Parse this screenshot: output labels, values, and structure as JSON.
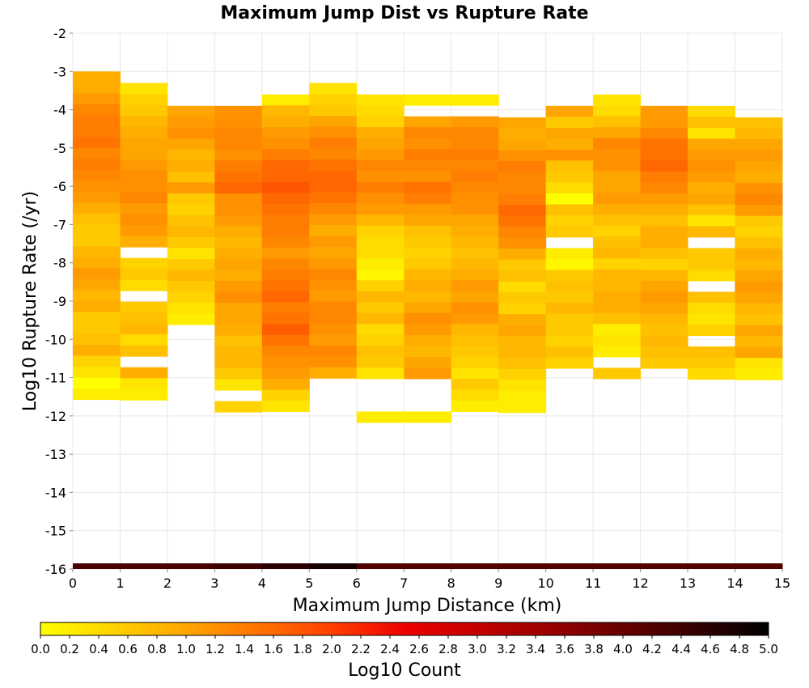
{
  "chart_data": {
    "type": "heatmap",
    "title": "Maximum Jump Dist vs Rupture Rate",
    "xlabel": "Maximum Jump Distance (km)",
    "ylabel": "Log10 Rupture Rate (/yr)",
    "xlim": [
      0,
      15
    ],
    "ylim": [
      -16,
      -2
    ],
    "x_ticks": [
      "0",
      "1",
      "2",
      "3",
      "4",
      "5",
      "6",
      "7",
      "8",
      "9",
      "10",
      "11",
      "12",
      "13",
      "14",
      "15"
    ],
    "y_ticks": [
      "-2",
      "-3",
      "-4",
      "-5",
      "-6",
      "-7",
      "-8",
      "-9",
      "-10",
      "-11",
      "-12",
      "-13",
      "-14",
      "-15",
      "-16"
    ],
    "grid": true,
    "x_bin_width": 1,
    "y_bin_height": 0.2857,
    "colorbar": {
      "label": "Log10 Count",
      "range": [
        0,
        5
      ],
      "ticks": [
        "0.0",
        "0.2",
        "0.4",
        "0.6",
        "0.8",
        "1.0",
        "1.2",
        "1.4",
        "1.6",
        "1.8",
        "2.0",
        "2.2",
        "2.4",
        "2.6",
        "2.8",
        "3.0",
        "3.2",
        "3.4",
        "3.6",
        "3.8",
        "4.0",
        "4.2",
        "4.4",
        "4.6",
        "4.8",
        "5.0"
      ],
      "colormap": [
        {
          "v": 0.0,
          "color": "#ffff00"
        },
        {
          "v": 1.0,
          "color": "#ffa500"
        },
        {
          "v": 2.0,
          "color": "#ff4000"
        },
        {
          "v": 2.5,
          "color": "#ee0000"
        },
        {
          "v": 3.5,
          "color": "#990000"
        },
        {
          "v": 5.0,
          "color": "#000000"
        }
      ]
    },
    "bottom_band_y": -16,
    "bottom_band_values": [
      4.3,
      4.3,
      4.3,
      4.4,
      4.6,
      4.8,
      4.2,
      4.2,
      4.2,
      4.2,
      4.2,
      4.2,
      4.2,
      4.2,
      4.2
    ],
    "columns": [
      {
        "x": 0,
        "y_top": -3.0,
        "values": [
          0.9,
          0.9,
          1.1,
          1.3,
          1.4,
          1.4,
          1.5,
          1.3,
          1.4,
          1.3,
          1.2,
          1.1,
          0.9,
          0.7,
          0.6,
          0.6,
          0.8,
          0.9,
          1.1,
          1.0,
          0.8,
          0.9,
          0.6,
          0.6,
          0.7,
          0.9,
          0.5,
          0.3,
          0.0,
          0.2
        ]
      },
      {
        "x": 1,
        "y_top": -3.3,
        "values": [
          0.3,
          0.5,
          0.6,
          0.8,
          0.9,
          1.0,
          1.0,
          1.1,
          1.2,
          1.2,
          1.3,
          1.1,
          1.2,
          1.1,
          0.9,
          null,
          0.5,
          0.6,
          0.4,
          null,
          0.6,
          0.7,
          0.8,
          0.4,
          0.7,
          null,
          0.9,
          0.3,
          0.2
        ]
      },
      {
        "x": 2,
        "y_top": -3.9,
        "values": [
          1.0,
          1.1,
          1.2,
          1.0,
          0.8,
          0.9,
          0.7,
          1.1,
          0.6,
          0.5,
          0.7,
          0.8,
          0.6,
          0.3,
          0.6,
          0.8,
          0.6,
          0.5,
          0.3,
          0.2
        ]
      },
      {
        "x": 3,
        "y_top": -3.9,
        "values": [
          1.2,
          1.2,
          1.3,
          1.3,
          1.2,
          1.4,
          1.5,
          1.6,
          1.2,
          1.2,
          1.1,
          0.9,
          0.8,
          0.9,
          1.0,
          0.9,
          1.1,
          1.2,
          1.0,
          1.0,
          0.9,
          0.7,
          0.8,
          0.8,
          0.6,
          0.3,
          null,
          0.5
        ]
      },
      {
        "x": 4,
        "y_top": -3.6,
        "values": [
          0.2,
          0.8,
          0.9,
          1.1,
          1.2,
          1.4,
          1.6,
          1.6,
          1.8,
          1.6,
          1.5,
          1.4,
          1.4,
          1.3,
          1.1,
          1.3,
          1.4,
          1.5,
          1.6,
          1.4,
          1.5,
          1.7,
          1.5,
          1.3,
          1.2,
          1.1,
          0.9,
          0.5,
          0.3
        ]
      },
      {
        "x": 5,
        "y_top": -3.3,
        "values": [
          0.3,
          0.5,
          0.6,
          1.0,
          1.2,
          1.4,
          1.3,
          1.5,
          1.6,
          1.6,
          1.5,
          1.3,
          1.1,
          0.9,
          1.1,
          1.0,
          1.1,
          1.3,
          1.2,
          1.1,
          1.3,
          1.3,
          1.2,
          1.1,
          1.3,
          1.2,
          0.9
        ]
      },
      {
        "x": 6,
        "y_top": -3.6,
        "values": [
          0.3,
          0.4,
          0.5,
          0.9,
          1.0,
          1.1,
          1.3,
          1.2,
          1.4,
          1.2,
          1.1,
          0.8,
          0.5,
          0.4,
          0.4,
          0.2,
          0.1,
          0.5,
          0.8,
          0.6,
          0.8,
          0.4,
          0.5,
          0.7,
          0.6,
          0.3,
          null,
          null,
          null,
          0.2
        ]
      },
      {
        "x": 7,
        "y_top": -3.6,
        "values": [
          0.2,
          null,
          1.0,
          1.3,
          1.2,
          1.4,
          1.3,
          1.2,
          1.5,
          1.4,
          1.1,
          1.0,
          0.7,
          0.6,
          0.5,
          0.6,
          0.8,
          0.9,
          0.8,
          1.0,
          1.2,
          1.1,
          0.9,
          0.8,
          1.0,
          1.1,
          null,
          null,
          null,
          0.2
        ]
      },
      {
        "x": 8,
        "y_top": -3.6,
        "values": [
          0.2,
          null,
          1.1,
          1.3,
          1.3,
          1.4,
          1.3,
          1.4,
          1.3,
          1.2,
          1.2,
          1.0,
          0.9,
          0.8,
          0.7,
          0.8,
          0.9,
          1.1,
          1.0,
          1.2,
          1.1,
          0.8,
          0.7,
          0.6,
          0.5,
          0.3,
          0.6,
          0.4,
          0.2
        ]
      },
      {
        "x": 9,
        "y_top": -4.2,
        "values": [
          1.0,
          0.9,
          1.0,
          1.2,
          1.4,
          1.3,
          1.3,
          1.4,
          1.6,
          1.5,
          1.3,
          1.2,
          0.9,
          0.6,
          0.7,
          0.4,
          0.6,
          0.5,
          0.9,
          1.0,
          0.8,
          0.8,
          0.7,
          0.5,
          0.3,
          0.2,
          0.2
        ]
      },
      {
        "x": 10,
        "y_top": -3.9,
        "values": [
          1.0,
          0.6,
          1.0,
          0.9,
          1.2,
          0.7,
          0.6,
          0.4,
          0.0,
          0.7,
          0.5,
          0.6,
          null,
          0.2,
          0.1,
          0.6,
          0.7,
          0.6,
          0.8,
          0.6,
          0.6,
          0.5,
          0.7,
          0.5
        ]
      },
      {
        "x": 11,
        "y_top": -3.6,
        "values": [
          0.3,
          0.4,
          0.7,
          1.0,
          1.3,
          1.2,
          1.2,
          1.0,
          1.0,
          1.1,
          0.9,
          0.7,
          0.5,
          0.7,
          0.8,
          0.5,
          0.8,
          0.8,
          0.9,
          0.9,
          0.7,
          0.2,
          0.3,
          0.2,
          null,
          0.6
        ]
      },
      {
        "x": 12,
        "y_top": -3.9,
        "values": [
          1.1,
          1.1,
          1.3,
          1.5,
          1.5,
          1.6,
          1.4,
          1.3,
          1.1,
          0.9,
          0.7,
          0.9,
          0.9,
          0.7,
          0.5,
          0.8,
          1.0,
          1.1,
          1.0,
          0.8,
          0.7,
          0.8,
          0.7,
          0.6
        ]
      },
      {
        "x": 13,
        "y_top": -3.9,
        "values": [
          0.4,
          0.7,
          0.3,
          1.0,
          1.1,
          1.2,
          1.1,
          0.9,
          1.0,
          0.7,
          0.3,
          0.8,
          null,
          0.6,
          0.6,
          0.4,
          null,
          0.7,
          0.4,
          0.3,
          0.5,
          null,
          0.7,
          0.6,
          0.4
        ]
      },
      {
        "x": 14,
        "y_top": -4.2,
        "values": [
          0.7,
          0.8,
          1.0,
          1.1,
          1.0,
          0.9,
          1.2,
          1.3,
          1.1,
          0.6,
          0.5,
          0.7,
          0.9,
          0.8,
          1.0,
          1.1,
          1.0,
          0.8,
          0.7,
          1.0,
          0.8,
          1.0,
          0.3,
          0.2
        ]
      }
    ]
  }
}
